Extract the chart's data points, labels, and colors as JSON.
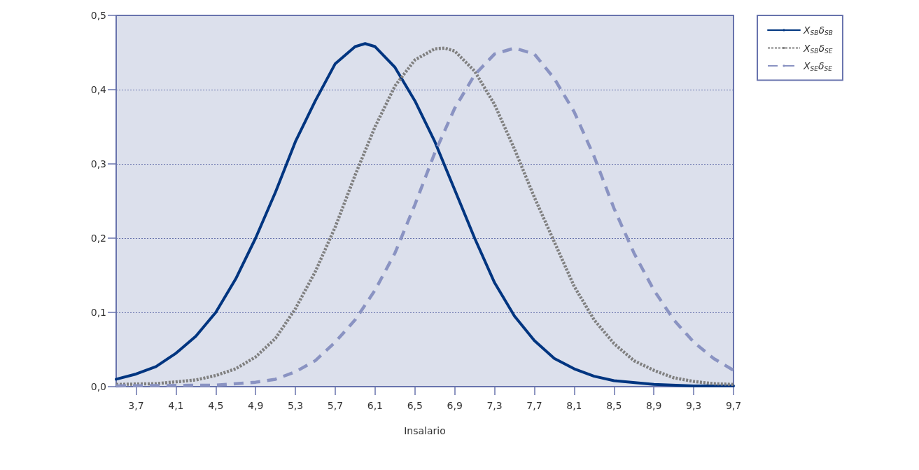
{
  "chart_data": {
    "type": "line",
    "xlabel": "Insalario",
    "marker": "none",
    "grid": "y",
    "legend": "top right",
    "xlim": [
      3.5,
      9.7
    ],
    "xticks": [
      {
        "value": 3.7,
        "label": "3,7"
      },
      {
        "value": 4.1,
        "label": "4,1"
      },
      {
        "value": 4.5,
        "label": "4,5"
      },
      {
        "value": 4.9,
        "label": "4,9"
      },
      {
        "value": 5.3,
        "label": "5,3"
      },
      {
        "value": 5.7,
        "label": "5,7"
      },
      {
        "value": 6.1,
        "label": "6,1"
      },
      {
        "value": 6.5,
        "label": "6,5"
      },
      {
        "value": 6.9,
        "label": "6,9"
      },
      {
        "value": 7.3,
        "label": "7,3"
      },
      {
        "value": 7.7,
        "label": "7,7"
      },
      {
        "value": 8.1,
        "label": "8,1"
      },
      {
        "value": 8.5,
        "label": "8,5"
      },
      {
        "value": 8.9,
        "label": "8,9"
      },
      {
        "value": 9.3,
        "label": "9,3"
      },
      {
        "value": 9.7,
        "label": "9,7"
      }
    ],
    "ylim": [
      0,
      0.5
    ],
    "yticks": [
      {
        "value": 0,
        "label": "0,0"
      },
      {
        "value": 0.1,
        "label": "0,1"
      },
      {
        "value": 0.2,
        "label": "0,2"
      },
      {
        "value": 0.3,
        "label": "0,3"
      },
      {
        "value": 0.4,
        "label": "0,4"
      },
      {
        "value": 0.5,
        "label": "0,5"
      }
    ],
    "series": [
      {
        "name": "X$_{SB}$δ$_{SB}$",
        "color": "#003580",
        "line_style": "solid",
        "x": [
          3.5,
          3.7,
          3.9,
          4.1,
          4.3,
          4.5,
          4.7,
          4.9,
          5.1,
          5.3,
          5.5,
          5.7,
          5.9,
          6.0,
          6.1,
          6.3,
          6.5,
          6.7,
          6.9,
          7.1,
          7.3,
          7.5,
          7.7,
          7.9,
          8.1,
          8.3,
          8.5,
          8.9,
          9.3,
          9.7
        ],
        "values": [
          0.01,
          0.017,
          0.027,
          0.045,
          0.068,
          0.1,
          0.145,
          0.2,
          0.262,
          0.33,
          0.385,
          0.435,
          0.458,
          0.462,
          0.458,
          0.43,
          0.385,
          0.33,
          0.265,
          0.2,
          0.14,
          0.095,
          0.062,
          0.038,
          0.024,
          0.014,
          0.008,
          0.003,
          0.001,
          0.001
        ]
      },
      {
        "name": "X$_{SB}$δ$_{SE}$",
        "color": "#808080",
        "line_style": "dotted",
        "x": [
          3.5,
          3.9,
          4.3,
          4.5,
          4.7,
          4.9,
          5.1,
          5.3,
          5.5,
          5.7,
          5.9,
          6.1,
          6.3,
          6.5,
          6.7,
          6.8,
          6.9,
          7.1,
          7.3,
          7.5,
          7.7,
          7.9,
          8.1,
          8.3,
          8.5,
          8.7,
          8.9,
          9.1,
          9.3,
          9.5,
          9.7
        ],
        "values": [
          0.003,
          0.004,
          0.009,
          0.015,
          0.024,
          0.04,
          0.065,
          0.105,
          0.155,
          0.215,
          0.285,
          0.35,
          0.405,
          0.44,
          0.455,
          0.456,
          0.452,
          0.425,
          0.38,
          0.32,
          0.255,
          0.195,
          0.135,
          0.09,
          0.058,
          0.035,
          0.022,
          0.012,
          0.007,
          0.004,
          0.003
        ]
      },
      {
        "name": "X$_{SE}$δ$_{SE}$",
        "color": "#8a93c2",
        "line_style": "dashed",
        "x": [
          3.5,
          4.5,
          4.9,
          5.1,
          5.3,
          5.5,
          5.7,
          5.9,
          6.1,
          6.3,
          6.5,
          6.7,
          6.9,
          7.1,
          7.3,
          7.5,
          7.7,
          7.9,
          8.1,
          8.3,
          8.5,
          8.7,
          8.9,
          9.1,
          9.3,
          9.5,
          9.7
        ],
        "values": [
          0.001,
          0.002,
          0.006,
          0.01,
          0.02,
          0.035,
          0.06,
          0.09,
          0.13,
          0.18,
          0.245,
          0.315,
          0.375,
          0.42,
          0.448,
          0.456,
          0.448,
          0.415,
          0.37,
          0.31,
          0.24,
          0.18,
          0.13,
          0.09,
          0.06,
          0.038,
          0.022
        ]
      }
    ]
  }
}
